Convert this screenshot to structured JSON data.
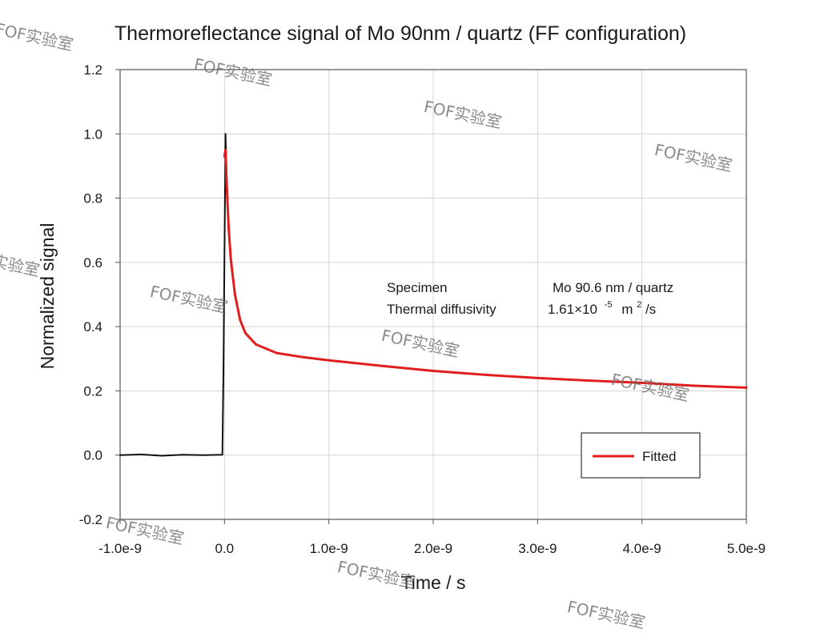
{
  "chart_data": {
    "type": "line",
    "title": "Thermoreflectance signal of Mo 90nm / quartz (FF configuration)",
    "xlabel": "Time / s",
    "ylabel": "Normalized signal",
    "xlim": [
      -1e-09,
      5e-09
    ],
    "ylim": [
      -0.2,
      1.2
    ],
    "x_ticks": [
      -1e-09,
      0,
      1e-09,
      2e-09,
      3e-09,
      4e-09,
      5e-09
    ],
    "x_tick_labels": [
      "-1.0e-9",
      "0.0",
      "1.0e-9",
      "2.0e-9",
      "3.0e-9",
      "4.0e-9",
      "5.0e-9"
    ],
    "y_ticks": [
      -0.2,
      0.0,
      0.2,
      0.4,
      0.6,
      0.8,
      1.0,
      1.2
    ],
    "y_tick_labels": [
      "-0.2",
      "0.0",
      "0.2",
      "0.4",
      "0.6",
      "0.8",
      "1.0",
      "1.2"
    ],
    "grid": true,
    "legend_position": "bottom-right",
    "series": [
      {
        "color": "#111111",
        "x": [
          -1e-09,
          -8e-10,
          -6e-10,
          -4e-10,
          -2e-10,
          -2e-11,
          -1e-11,
          0.0,
          1e-11,
          2e-11,
          4e-11,
          6e-11,
          1e-10,
          1.5e-10,
          2e-10,
          3e-10,
          5e-10,
          7.5e-10,
          1e-09,
          1.5e-09,
          2e-09,
          2.5e-09,
          3e-09,
          3.5e-09,
          4e-09,
          4.5e-09,
          5e-09
        ],
        "values": [
          0.0,
          0.002,
          -0.002,
          0.001,
          0.0,
          0.001,
          0.25,
          0.62,
          1.0,
          0.88,
          0.72,
          0.62,
          0.5,
          0.42,
          0.38,
          0.345,
          0.318,
          0.305,
          0.295,
          0.278,
          0.262,
          0.25,
          0.24,
          0.232,
          0.225,
          0.216,
          0.21
        ]
      },
      {
        "name": "Fitted",
        "color": "#e01e1e",
        "x": [
          0.0,
          1e-11,
          2e-11,
          4e-11,
          6e-11,
          1e-10,
          1.5e-10,
          2e-10,
          3e-10,
          5e-10,
          7.5e-10,
          1e-09,
          1.5e-09,
          2e-09,
          2.5e-09,
          3e-09,
          3.5e-09,
          4e-09,
          4.5e-09,
          5e-09
        ],
        "values": [
          0.93,
          0.95,
          0.85,
          0.71,
          0.61,
          0.5,
          0.42,
          0.38,
          0.345,
          0.318,
          0.305,
          0.295,
          0.278,
          0.262,
          0.25,
          0.24,
          0.232,
          0.225,
          0.216,
          0.21
        ]
      }
    ],
    "annotations": {
      "specimen_label": "Specimen",
      "specimen_value": "Mo  90.6  nm  / quartz",
      "diffusivity_label": "Thermal  diffusivity",
      "diffusivity_mantissa": "1.61×10",
      "diffusivity_exponent": "-5",
      "diffusivity_unit_base": "m",
      "diffusivity_unit_sup": "2",
      "diffusivity_unit_tail": "/s"
    }
  },
  "watermark": {
    "text": "FOF实验室"
  }
}
